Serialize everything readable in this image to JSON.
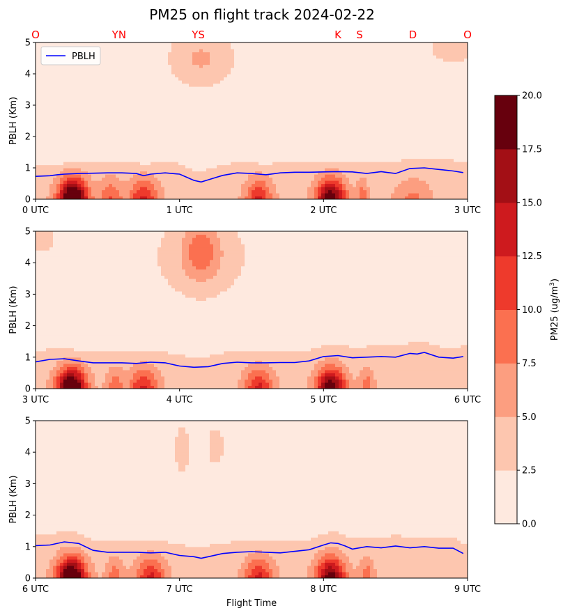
{
  "chart_data": {
    "type": "heatmap",
    "title": "PM25 on flight track 2024-02-22",
    "location_labels": [
      "O",
      "YN",
      "YS",
      "K",
      "S",
      "D",
      "O"
    ],
    "location_positions_hours": [
      0.0,
      0.58,
      1.13,
      2.1,
      2.25,
      2.62,
      3.0
    ],
    "xlabel": "Flight Time",
    "ylabel": "PBLH (Km)",
    "ylim": [
      0,
      5
    ],
    "yticks": [
      0,
      1,
      2,
      3,
      4,
      5
    ],
    "legend": {
      "entries": [
        "PBLH"
      ],
      "placement": "top-left"
    },
    "colorbar": {
      "label": "PM25 (ug/m³)",
      "label_main": "PM25 (ug/m",
      "label_sup": "3",
      "label_end": ")",
      "ticks": [
        "0.0",
        "2.5",
        "5.0",
        "7.5",
        "10.0",
        "12.5",
        "15.0",
        "17.5",
        "20.0"
      ],
      "levels": [
        0,
        2.5,
        5,
        7.5,
        10,
        12.5,
        15,
        17.5,
        20
      ],
      "colors": [
        "#fee9df",
        "#fdc6af",
        "#fc9e80",
        "#fb7050",
        "#ee3a2c",
        "#ce1a1e",
        "#a30f15",
        "#67000d"
      ]
    },
    "pblh_color": "#0000ff",
    "panels": [
      {
        "xlim": [
          0,
          3
        ],
        "xticks": [
          "0 UTC",
          "1 UTC",
          "2 UTC",
          "3 UTC"
        ],
        "pblh": {
          "x": [
            0,
            0.1,
            0.15,
            0.2,
            0.3,
            0.4,
            0.5,
            0.6,
            0.7,
            0.75,
            0.8,
            0.9,
            1.0,
            1.05,
            1.1,
            1.15,
            1.2,
            1.3,
            1.4,
            1.5,
            1.6,
            1.7,
            1.8,
            1.9,
            2.0,
            2.1,
            2.2,
            2.3,
            2.4,
            2.45,
            2.5,
            2.6,
            2.7,
            2.8,
            2.9,
            2.97
          ],
          "y": [
            0.73,
            0.75,
            0.78,
            0.8,
            0.82,
            0.83,
            0.84,
            0.84,
            0.82,
            0.75,
            0.8,
            0.84,
            0.8,
            0.7,
            0.6,
            0.55,
            0.62,
            0.76,
            0.84,
            0.82,
            0.78,
            0.84,
            0.86,
            0.86,
            0.87,
            0.88,
            0.87,
            0.82,
            0.88,
            0.85,
            0.82,
            0.98,
            1.0,
            0.95,
            0.9,
            0.85
          ]
        },
        "cores": [
          {
            "x": 0.26,
            "w": 0.1,
            "peak": 20
          },
          {
            "x": 0.52,
            "w": 0.08,
            "peak": 6
          },
          {
            "x": 0.75,
            "w": 0.1,
            "peak": 9
          },
          {
            "x": 1.55,
            "w": 0.09,
            "peak": 9
          },
          {
            "x": 2.05,
            "w": 0.1,
            "peak": 16
          },
          {
            "x": 2.27,
            "w": 0.04,
            "peak": 5
          },
          {
            "x": 2.62,
            "w": 0.12,
            "peak": 4
          }
        ],
        "aloft": [
          {
            "x": 1.15,
            "y": 4.5,
            "w": 0.2,
            "h": 0.8,
            "v": 4
          },
          {
            "x": 2.9,
            "y": 4.8,
            "w": 0.15,
            "h": 0.4,
            "v": 3
          }
        ]
      },
      {
        "xlim": [
          3,
          6
        ],
        "xticks": [
          "3 UTC",
          "4 UTC",
          "5 UTC",
          "6 UTC"
        ],
        "pblh": {
          "x": [
            3,
            3.1,
            3.2,
            3.3,
            3.4,
            3.5,
            3.6,
            3.7,
            3.8,
            3.9,
            4.0,
            4.1,
            4.2,
            4.3,
            4.4,
            4.5,
            4.6,
            4.7,
            4.8,
            4.9,
            5.0,
            5.1,
            5.2,
            5.3,
            5.4,
            5.5,
            5.6,
            5.65,
            5.7,
            5.8,
            5.9,
            5.97
          ],
          "y": [
            0.85,
            0.93,
            0.95,
            0.88,
            0.82,
            0.82,
            0.82,
            0.8,
            0.84,
            0.82,
            0.72,
            0.68,
            0.7,
            0.8,
            0.84,
            0.82,
            0.82,
            0.83,
            0.83,
            0.88,
            1.02,
            1.05,
            0.98,
            1.0,
            1.02,
            1.0,
            1.12,
            1.1,
            1.15,
            1.0,
            0.97,
            1.02
          ]
        },
        "cores": [
          {
            "x": 3.25,
            "w": 0.1,
            "peak": 19
          },
          {
            "x": 3.55,
            "w": 0.06,
            "peak": 5
          },
          {
            "x": 3.75,
            "w": 0.1,
            "peak": 9
          },
          {
            "x": 4.55,
            "w": 0.1,
            "peak": 9
          },
          {
            "x": 5.05,
            "w": 0.1,
            "peak": 16
          },
          {
            "x": 5.3,
            "w": 0.05,
            "peak": 5
          }
        ],
        "aloft": [
          {
            "x": 4.15,
            "y": 4.4,
            "w": 0.12,
            "h": 0.9,
            "v": 5.5
          },
          {
            "x": 4.15,
            "y": 4.2,
            "w": 0.3,
            "h": 1.2,
            "v": 3
          },
          {
            "x": 3.05,
            "y": 4.8,
            "w": 0.08,
            "h": 0.4,
            "v": 3
          }
        ]
      },
      {
        "xlim": [
          6,
          9
        ],
        "xticks": [
          "6 UTC",
          "7 UTC",
          "8 UTC",
          "9 UTC"
        ],
        "pblh": {
          "x": [
            6,
            6.1,
            6.2,
            6.3,
            6.4,
            6.5,
            6.6,
            6.7,
            6.8,
            6.9,
            7.0,
            7.1,
            7.15,
            7.2,
            7.3,
            7.4,
            7.5,
            7.6,
            7.7,
            7.8,
            7.9,
            8.0,
            8.05,
            8.1,
            8.15,
            8.2,
            8.3,
            8.4,
            8.5,
            8.6,
            8.7,
            8.8,
            8.9,
            8.97
          ],
          "y": [
            1.03,
            1.05,
            1.15,
            1.1,
            0.88,
            0.82,
            0.82,
            0.82,
            0.8,
            0.82,
            0.72,
            0.68,
            0.63,
            0.68,
            0.78,
            0.82,
            0.84,
            0.82,
            0.8,
            0.85,
            0.9,
            1.05,
            1.12,
            1.1,
            1.02,
            0.92,
            1.0,
            0.96,
            1.02,
            0.96,
            1.0,
            0.95,
            0.95,
            0.78
          ]
        },
        "cores": [
          {
            "x": 6.25,
            "w": 0.1,
            "peak": 19
          },
          {
            "x": 6.55,
            "w": 0.06,
            "peak": 5
          },
          {
            "x": 6.8,
            "w": 0.1,
            "peak": 9
          },
          {
            "x": 7.55,
            "w": 0.1,
            "peak": 9
          },
          {
            "x": 8.05,
            "w": 0.1,
            "peak": 15
          },
          {
            "x": 8.3,
            "w": 0.05,
            "peak": 5
          }
        ],
        "aloft": [
          {
            "x": 7.02,
            "y": 4.1,
            "w": 0.05,
            "h": 0.7,
            "v": 3
          },
          {
            "x": 7.25,
            "y": 4.2,
            "w": 0.05,
            "h": 0.55,
            "v": 3
          }
        ]
      }
    ]
  }
}
